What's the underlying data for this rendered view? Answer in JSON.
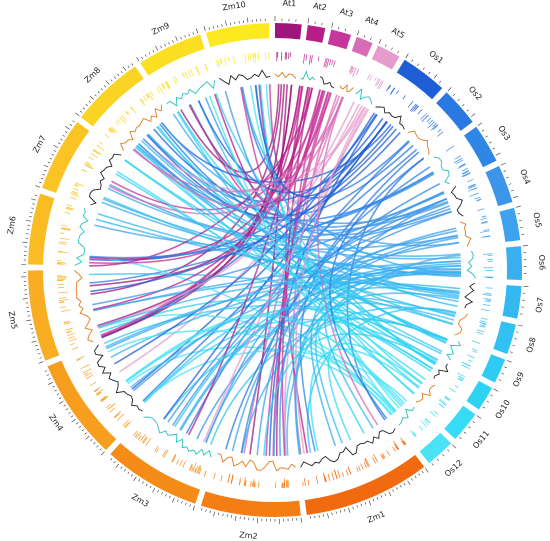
{
  "chromosomes": [
    {
      "label": "At1",
      "color": "#a0157a",
      "size": 30
    },
    {
      "label": "At2",
      "color": "#b81e8a",
      "size": 20
    },
    {
      "label": "At3",
      "color": "#c7369a",
      "size": 23
    },
    {
      "label": "At4",
      "color": "#d86bb6",
      "size": 19
    },
    {
      "label": "At5",
      "color": "#e49ccc",
      "size": 27
    },
    {
      "label": "Os1",
      "color": "#1f5fd6",
      "size": 43
    },
    {
      "label": "Os2",
      "color": "#2a78e2",
      "size": 36
    },
    {
      "label": "Os3",
      "color": "#2f86e6",
      "size": 36
    },
    {
      "label": "Os4",
      "color": "#3c95ea",
      "size": 35
    },
    {
      "label": "Os5",
      "color": "#3fa2ee",
      "size": 30
    },
    {
      "label": "Os6",
      "color": "#3aaff0",
      "size": 31
    },
    {
      "label": "Os7",
      "color": "#34b8f1",
      "size": 30
    },
    {
      "label": "Os8",
      "color": "#32c1f2",
      "size": 28
    },
    {
      "label": "Os9",
      "color": "#30cbf3",
      "size": 23
    },
    {
      "label": "Os10",
      "color": "#2ed3f4",
      "size": 23
    },
    {
      "label": "Os11",
      "color": "#36dcf5",
      "size": 29
    },
    {
      "label": "Os12",
      "color": "#4ae3f6",
      "size": 27
    },
    {
      "label": "Zm1",
      "color": "#f26a10",
      "size": 301
    },
    {
      "label": "Zm2",
      "color": "#f47d14",
      "size": 237
    },
    {
      "label": "Zm3",
      "color": "#f68c18",
      "size": 232
    },
    {
      "label": "Zm4",
      "color": "#f79e1f",
      "size": 241
    },
    {
      "label": "Zm5",
      "color": "#f8ad22",
      "size": 217
    },
    {
      "label": "Zm6",
      "color": "#f9bc22",
      "size": 169
    },
    {
      "label": "Zm7",
      "color": "#fac524",
      "size": 176
    },
    {
      "label": "Zm8",
      "color": "#fbd324",
      "size": 175
    },
    {
      "label": "Zm9",
      "color": "#fcdf22",
      "size": 156
    },
    {
      "label": "Zm10",
      "color": "#fde920",
      "size": 150
    }
  ],
  "link_colors": [
    "#a0157a",
    "#c2309a",
    "#d462b0",
    "#1f5fd6",
    "#3a8ee8",
    "#30cbf3",
    "#5ae6f6"
  ],
  "line_colors": [
    "#e07b1a",
    "#2bbfc0",
    "#222222"
  ]
}
